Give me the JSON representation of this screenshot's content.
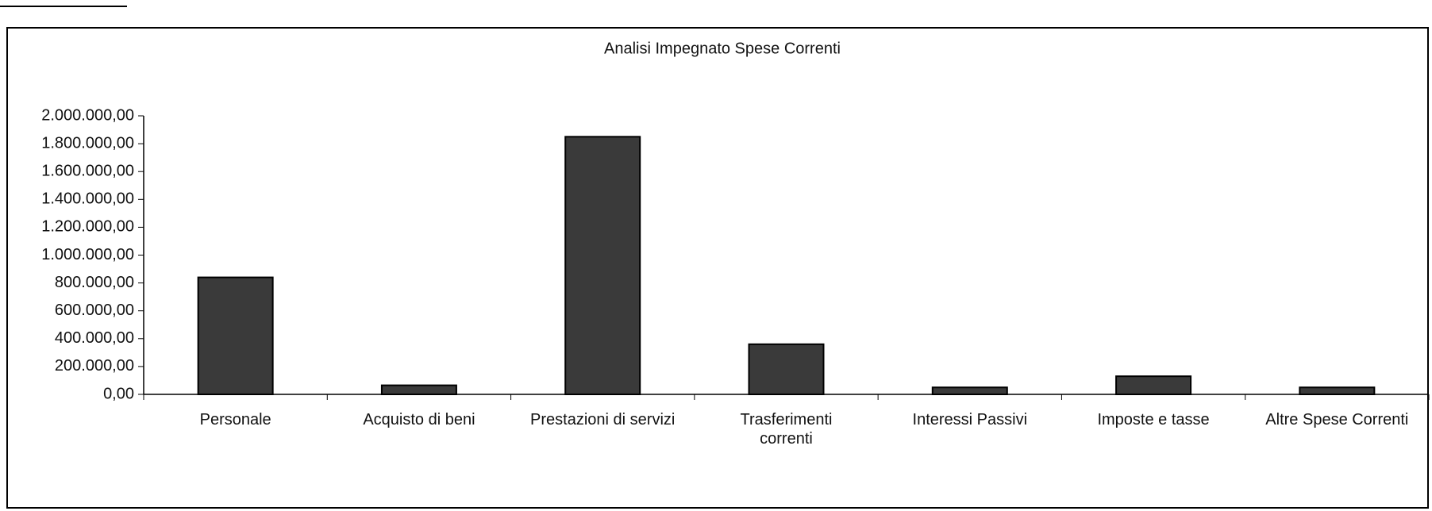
{
  "chart_data": {
    "type": "bar",
    "title": "Analisi Impegnato Spese Correnti",
    "categories": [
      "Personale",
      "Acquisto di beni",
      "Prestazioni di servizi",
      "Trasferimenti correnti",
      "Interessi Passivi",
      "Imposte e tasse",
      "Altre Spese Correnti"
    ],
    "values": [
      840000,
      65000,
      1850000,
      360000,
      50000,
      130000,
      50000
    ],
    "color": "#3a3a3a",
    "ylim": [
      0,
      2000000
    ],
    "yticks": [
      {
        "value": 0,
        "label": "0,00"
      },
      {
        "value": 200000,
        "label": "200.000,00"
      },
      {
        "value": 400000,
        "label": "400.000,00"
      },
      {
        "value": 600000,
        "label": "600.000,00"
      },
      {
        "value": 800000,
        "label": "800.000,00"
      },
      {
        "value": 1000000,
        "label": "1.000.000,00"
      },
      {
        "value": 1200000,
        "label": "1.200.000,00"
      },
      {
        "value": 1400000,
        "label": "1.400.000,00"
      },
      {
        "value": 1600000,
        "label": "1.600.000,00"
      },
      {
        "value": 1800000,
        "label": "1.800.000,00"
      },
      {
        "value": 2000000,
        "label": "2.000.000,00"
      }
    ]
  }
}
